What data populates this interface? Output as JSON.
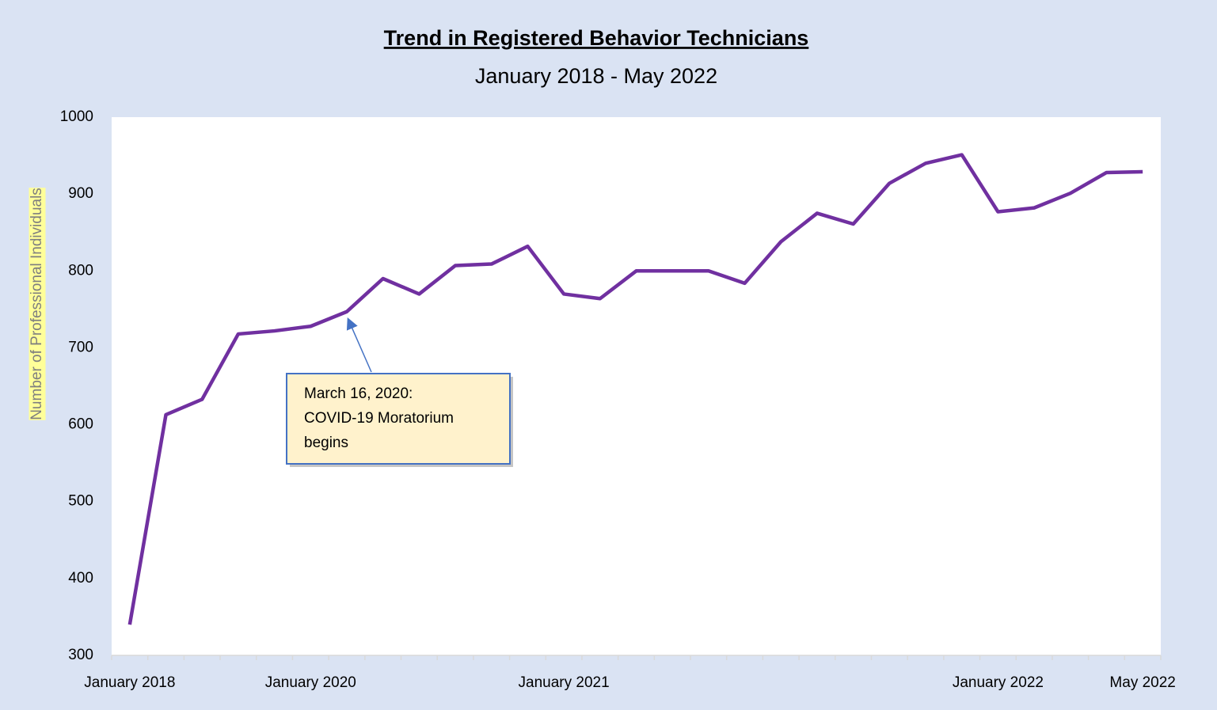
{
  "chart_data": {
    "type": "line",
    "title": "Trend in Registered Behavior Technicians",
    "subtitle": "January 2018 - May 2022",
    "y_label": "Number of Professional Individuals",
    "categories": [
      "January 2018",
      null,
      null,
      null,
      null,
      "January 2020",
      null,
      null,
      null,
      null,
      null,
      null,
      "January 2021",
      null,
      null,
      null,
      null,
      null,
      null,
      null,
      null,
      null,
      null,
      null,
      "January 2022",
      null,
      null,
      null,
      "May 2022"
    ],
    "series": [
      {
        "name": "Registered Behavior Technicians",
        "color": "#7030a0",
        "values": [
          340,
          613,
          633,
          718,
          722,
          728,
          747,
          790,
          770,
          807,
          809,
          832,
          770,
          764,
          800,
          800,
          800,
          784,
          838,
          875,
          861,
          914,
          940,
          951,
          877,
          882,
          901,
          928,
          929
        ]
      }
    ],
    "ylim": [
      300,
      1000
    ],
    "yticks": [
      300,
      400,
      500,
      600,
      700,
      800,
      900,
      1000
    ],
    "annotation": {
      "lines": [
        "March 16, 2020:",
        "COVID-19 Moratorium",
        "begins"
      ],
      "index": 6
    }
  }
}
